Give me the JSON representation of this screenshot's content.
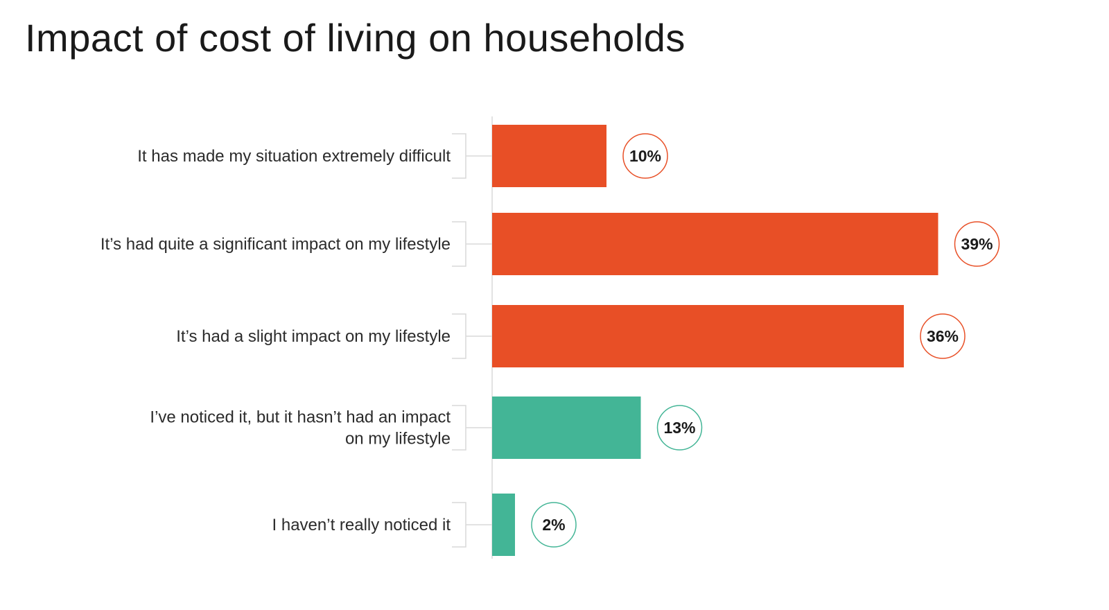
{
  "title": "Impact of cost of living on households",
  "colors": {
    "negative": "#e84f26",
    "neutral": "#43b596",
    "axis": "#d9d9d9"
  },
  "chart_data": {
    "type": "bar",
    "orientation": "horizontal",
    "title": "Impact of cost of living on households",
    "xlabel": "",
    "ylabel": "",
    "xlim": [
      0,
      43
    ],
    "grid": false,
    "legend": "none",
    "value_format": "percent",
    "categories": [
      [
        "It has made my situation extremely difficult"
      ],
      [
        "It’s had quite a significant impact on my lifestyle"
      ],
      [
        "It’s had a slight impact on my lifestyle"
      ],
      [
        "I’ve noticed it, but it hasn’t  had an impact",
        "on my lifestyle"
      ],
      [
        "I haven’t really noticed it"
      ]
    ],
    "values": [
      10,
      39,
      36,
      13,
      2
    ],
    "value_labels": [
      "10%",
      "39%",
      "36%",
      "13%",
      "2%"
    ],
    "bar_colors": [
      "#e84f26",
      "#e84f26",
      "#e84f26",
      "#43b596",
      "#43b596"
    ]
  }
}
